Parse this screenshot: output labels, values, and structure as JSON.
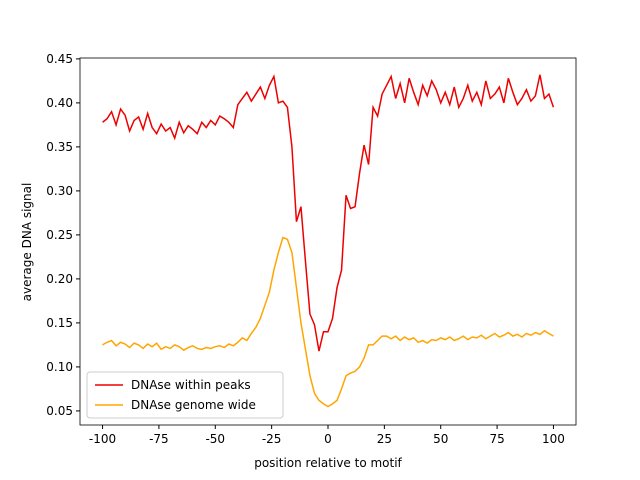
{
  "chart_data": {
    "type": "line",
    "xlabel": "position relative to motif",
    "ylabel": "average DNA signal",
    "x": [
      -100,
      -98,
      -96,
      -94,
      -92,
      -90,
      -88,
      -86,
      -84,
      -82,
      -80,
      -78,
      -76,
      -74,
      -72,
      -70,
      -68,
      -66,
      -64,
      -62,
      -60,
      -58,
      -56,
      -54,
      -52,
      -50,
      -48,
      -46,
      -44,
      -42,
      -40,
      -38,
      -36,
      -34,
      -32,
      -30,
      -28,
      -26,
      -24,
      -22,
      -20,
      -18,
      -16,
      -14,
      -12,
      -10,
      -8,
      -6,
      -4,
      -2,
      0,
      2,
      4,
      6,
      8,
      10,
      12,
      14,
      16,
      18,
      20,
      22,
      24,
      26,
      28,
      30,
      32,
      34,
      36,
      38,
      40,
      42,
      44,
      46,
      48,
      50,
      52,
      54,
      56,
      58,
      60,
      62,
      64,
      66,
      68,
      70,
      72,
      74,
      76,
      78,
      80,
      82,
      84,
      86,
      88,
      90,
      92,
      94,
      96,
      98,
      100
    ],
    "series": [
      {
        "name": "DNAse within peaks",
        "color": "#ee0000",
        "values": [
          0.378,
          0.382,
          0.39,
          0.375,
          0.393,
          0.386,
          0.368,
          0.38,
          0.384,
          0.37,
          0.388,
          0.372,
          0.365,
          0.376,
          0.368,
          0.372,
          0.36,
          0.378,
          0.366,
          0.374,
          0.37,
          0.365,
          0.378,
          0.372,
          0.38,
          0.375,
          0.385,
          0.382,
          0.378,
          0.372,
          0.398,
          0.405,
          0.412,
          0.402,
          0.41,
          0.418,
          0.405,
          0.42,
          0.43,
          0.4,
          0.402,
          0.395,
          0.35,
          0.265,
          0.282,
          0.22,
          0.16,
          0.148,
          0.118,
          0.14,
          0.14,
          0.155,
          0.19,
          0.21,
          0.295,
          0.28,
          0.282,
          0.32,
          0.352,
          0.33,
          0.395,
          0.385,
          0.41,
          0.42,
          0.43,
          0.405,
          0.422,
          0.4,
          0.428,
          0.412,
          0.398,
          0.42,
          0.408,
          0.425,
          0.415,
          0.4,
          0.412,
          0.398,
          0.418,
          0.395,
          0.405,
          0.42,
          0.402,
          0.412,
          0.398,
          0.425,
          0.405,
          0.41,
          0.418,
          0.4,
          0.428,
          0.412,
          0.398,
          0.405,
          0.415,
          0.402,
          0.408,
          0.432,
          0.405,
          0.41,
          0.395
        ]
      },
      {
        "name": "DNAse genome wide",
        "color": "#ffa500",
        "values": [
          0.125,
          0.128,
          0.13,
          0.124,
          0.128,
          0.126,
          0.122,
          0.127,
          0.125,
          0.121,
          0.126,
          0.123,
          0.127,
          0.12,
          0.123,
          0.121,
          0.125,
          0.123,
          0.119,
          0.122,
          0.124,
          0.121,
          0.12,
          0.122,
          0.121,
          0.123,
          0.124,
          0.122,
          0.126,
          0.124,
          0.128,
          0.133,
          0.13,
          0.138,
          0.145,
          0.155,
          0.17,
          0.185,
          0.21,
          0.23,
          0.247,
          0.245,
          0.23,
          0.19,
          0.15,
          0.12,
          0.09,
          0.07,
          0.062,
          0.058,
          0.055,
          0.058,
          0.062,
          0.075,
          0.09,
          0.093,
          0.095,
          0.1,
          0.11,
          0.125,
          0.125,
          0.13,
          0.135,
          0.135,
          0.132,
          0.135,
          0.13,
          0.134,
          0.131,
          0.133,
          0.128,
          0.13,
          0.127,
          0.131,
          0.13,
          0.133,
          0.131,
          0.134,
          0.13,
          0.132,
          0.135,
          0.131,
          0.134,
          0.133,
          0.136,
          0.132,
          0.135,
          0.138,
          0.134,
          0.136,
          0.139,
          0.135,
          0.137,
          0.134,
          0.138,
          0.136,
          0.139,
          0.137,
          0.141,
          0.138,
          0.135
        ]
      }
    ],
    "xlim": [
      -110,
      110
    ],
    "xticks": [
      -100,
      -75,
      -50,
      -25,
      0,
      25,
      50,
      75,
      100
    ],
    "ylim": [
      0.034,
      0.451
    ],
    "yticks": [
      0.05,
      {
        "value": 0.1,
        "label": "0.10"
      },
      0.15,
      {
        "value": 0.2,
        "label": "0.20"
      },
      0.25,
      {
        "value": 0.3,
        "label": "0.30"
      },
      0.35,
      {
        "value": 0.4,
        "label": "0.40"
      },
      0.45
    ],
    "legend": "lower left"
  }
}
